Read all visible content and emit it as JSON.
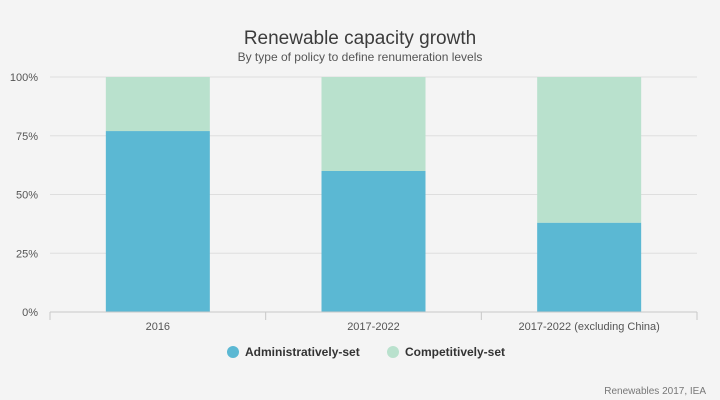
{
  "chart_data": {
    "type": "bar",
    "stacked": true,
    "title": "Renewable capacity growth",
    "subtitle": "By type of policy to define renumeration levels",
    "categories": [
      "2016",
      "2017-2022",
      "2017-2022 (excluding China)"
    ],
    "series": [
      {
        "name": "Administratively-set",
        "values": [
          77,
          60,
          38
        ],
        "color": "#5bb8d3"
      },
      {
        "name": "Competitively-set",
        "values": [
          23,
          40,
          62
        ],
        "color": "#b9e1cd"
      }
    ],
    "ylim": [
      0,
      100
    ],
    "y_ticks": [
      "0%",
      "25%",
      "50%",
      "75%",
      "100%"
    ],
    "y_tick_values": [
      0,
      25,
      50,
      75,
      100
    ],
    "grid": true,
    "legend_position": "bottom-center",
    "source": "Renewables 2017, IEA"
  }
}
